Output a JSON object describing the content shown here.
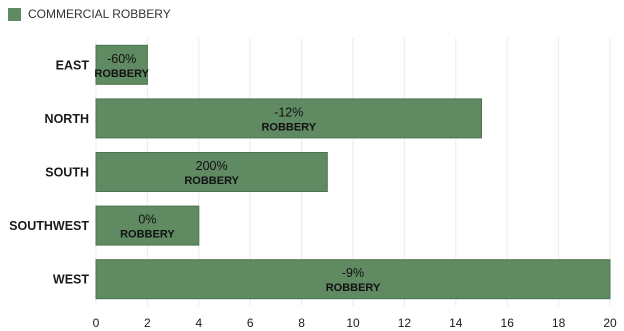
{
  "legend": {
    "label": "COMMERCIAL ROBBERY",
    "color": "#5f8a62"
  },
  "chart_data": {
    "type": "bar",
    "orientation": "horizontal",
    "categories": [
      "EAST",
      "NORTH",
      "SOUTH",
      "SOUTHWEST",
      "WEST"
    ],
    "series": [
      {
        "name": "COMMERCIAL ROBBERY",
        "values": [
          2,
          15,
          9,
          4,
          20
        ],
        "data_labels": [
          [
            "-60%",
            "ROBBERY"
          ],
          [
            "-12%",
            "ROBBERY"
          ],
          [
            "200%",
            "ROBBERY"
          ],
          [
            "0%",
            "ROBBERY"
          ],
          [
            "-9%",
            "ROBBERY"
          ]
        ]
      }
    ],
    "xlim": [
      0,
      20
    ],
    "xticks": [
      0,
      2,
      4,
      6,
      8,
      10,
      12,
      14,
      16,
      18,
      20
    ],
    "grid": true,
    "legend_position": "top-left",
    "colors": {
      "bar": "#5f8a62",
      "bar_border": "#4d7350",
      "grid": "#ebebeb"
    }
  }
}
